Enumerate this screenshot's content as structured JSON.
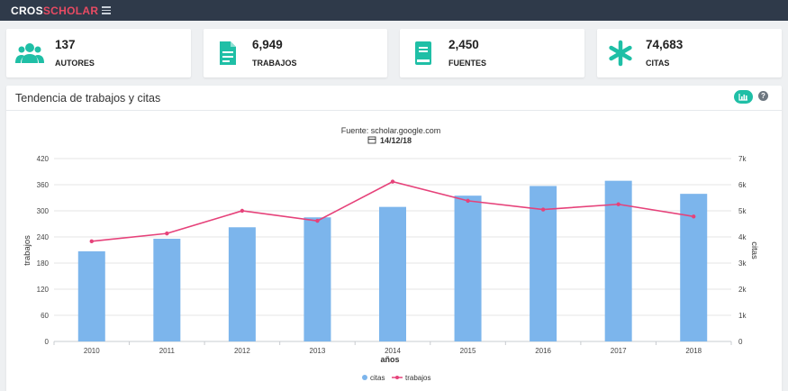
{
  "app": {
    "brand_a": "CROS",
    "brand_b": "SCHOLAR"
  },
  "stats": [
    {
      "icon": "users-icon",
      "value": "137",
      "label": "AUTORES"
    },
    {
      "icon": "document-icon",
      "value": "6,949",
      "label": "TRABAJOS"
    },
    {
      "icon": "book-icon",
      "value": "2,450",
      "label": "FUENTES"
    },
    {
      "icon": "asterisk-icon",
      "value": "74,683",
      "label": "CITAS"
    }
  ],
  "panel": {
    "title": "Tendencia de trabajos y citas",
    "help": "?"
  },
  "colors": {
    "accent": "#1fbfa6",
    "bars": "#7cb5ec",
    "line": "#e6427a",
    "topbar": "#2f3a4a"
  },
  "chart_data": {
    "type": "bar",
    "subtitle": "Fuente: scholar.google.com",
    "date": "14/12/18",
    "xlabel": "años",
    "ylabel_left": "trabajos",
    "ylabel_right": "citas",
    "categories": [
      "2010",
      "2011",
      "2012",
      "2013",
      "2014",
      "2015",
      "2016",
      "2017",
      "2018"
    ],
    "left_ticks": [
      "0",
      "60",
      "120",
      "180",
      "240",
      "300",
      "360",
      "420"
    ],
    "right_ticks": [
      "0",
      "1k",
      "2k",
      "3k",
      "4k",
      "5k",
      "6k",
      "7k"
    ],
    "ylim_left": [
      0,
      420
    ],
    "ylim_right": [
      0,
      7000
    ],
    "grid": true,
    "legend_position": "bottom-center",
    "series": [
      {
        "name": "citas",
        "type": "bar",
        "axis": "right",
        "values": [
          3450,
          3930,
          4370,
          4750,
          5150,
          5580,
          5950,
          6150,
          5650
        ]
      },
      {
        "name": "trabajos",
        "type": "line",
        "axis": "left",
        "values": [
          230,
          248,
          300,
          277,
          367,
          323,
          303,
          315,
          287
        ]
      }
    ]
  }
}
